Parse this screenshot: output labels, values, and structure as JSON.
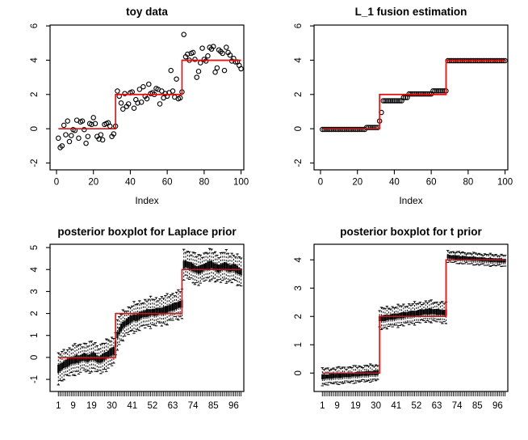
{
  "page": {
    "background": "#ffffff",
    "foreground": "#000000",
    "accent_color": "#ff0000"
  },
  "chart_data": [
    {
      "type": "scatter",
      "title": "toy data",
      "xlabel": "Index",
      "ylabel": "",
      "xlim": [
        -3.5,
        101.5
      ],
      "ylim": [
        -2.4,
        6.05
      ],
      "xticks": [
        0,
        20,
        40,
        60,
        80,
        100
      ],
      "yticks": [
        -2,
        0,
        2,
        4,
        6
      ],
      "grid": false,
      "point_style": "open-circle",
      "values": [
        -0.55,
        -1.1,
        -1.0,
        0.2,
        -0.35,
        0.45,
        -0.75,
        -0.4,
        -0.05,
        -0.1,
        0.5,
        -0.55,
        0.4,
        0.45,
        -0.05,
        -0.85,
        -0.45,
        0.3,
        0.25,
        0.65,
        0.3,
        -0.45,
        -0.6,
        -0.35,
        -0.65,
        0.25,
        0.3,
        0.35,
        0.15,
        -0.45,
        -0.3,
        0.15,
        2.2,
        1.9,
        1.5,
        1.15,
        2.05,
        1.3,
        1.45,
        2.1,
        2.15,
        1.2,
        1.7,
        1.5,
        2.3,
        1.55,
        2.45,
        1.9,
        1.75,
        2.6,
        2.05,
        2.1,
        2.0,
        2.35,
        2.3,
        1.45,
        2.2,
        1.8,
        2.05,
        1.9,
        2.1,
        3.4,
        2.2,
        1.85,
        2.9,
        1.75,
        1.8,
        2.15,
        5.5,
        4.2,
        4.35,
        4.0,
        4.4,
        4.45,
        4.05,
        3.0,
        3.35,
        3.85,
        4.7,
        4.05,
        3.95,
        4.25,
        4.75,
        4.65,
        4.8,
        3.3,
        3.55,
        4.6,
        4.5,
        4.4,
        3.4,
        4.75,
        4.45,
        4.3,
        3.95,
        4.1,
        3.9,
        3.9,
        3.7,
        3.5
      ],
      "truth_line": {
        "color": "#ff0000",
        "points": [
          [
            1,
            0
          ],
          [
            32,
            0
          ],
          [
            32,
            2
          ],
          [
            68,
            2
          ],
          [
            68,
            4
          ],
          [
            100,
            4
          ]
        ]
      }
    },
    {
      "type": "scatter",
      "title": "L_1 fusion estimation",
      "xlabel": "Index",
      "ylabel": "",
      "xlim": [
        -3.5,
        101.5
      ],
      "ylim": [
        -2.4,
        6.05
      ],
      "xticks": [
        0,
        20,
        40,
        60,
        80,
        100
      ],
      "yticks": [
        -2,
        0,
        2,
        4,
        6
      ],
      "grid": false,
      "point_style": "open-circle",
      "values": [
        -0.04,
        -0.04,
        -0.04,
        -0.04,
        -0.04,
        -0.04,
        -0.04,
        -0.04,
        -0.04,
        -0.04,
        -0.04,
        -0.04,
        -0.04,
        -0.04,
        -0.04,
        -0.04,
        -0.04,
        -0.04,
        -0.04,
        -0.04,
        -0.04,
        -0.04,
        -0.04,
        -0.04,
        0.07,
        0.07,
        0.07,
        0.07,
        0.07,
        0.07,
        0.07,
        0.45,
        0.95,
        1.63,
        1.63,
        1.63,
        1.63,
        1.63,
        1.63,
        1.63,
        1.63,
        1.63,
        1.63,
        1.63,
        1.82,
        1.82,
        1.82,
        2.03,
        2.03,
        2.03,
        2.03,
        2.03,
        2.03,
        2.03,
        2.03,
        2.03,
        2.03,
        2.03,
        2.03,
        2.03,
        2.21,
        2.21,
        2.21,
        2.21,
        2.21,
        2.21,
        2.21,
        2.21,
        3.97,
        3.97,
        3.97,
        3.97,
        3.97,
        3.97,
        3.97,
        3.97,
        3.97,
        3.97,
        3.97,
        3.97,
        3.97,
        3.97,
        3.97,
        3.97,
        3.97,
        3.97,
        3.97,
        3.97,
        3.97,
        3.97,
        3.97,
        3.97,
        3.97,
        3.97,
        3.97,
        3.97,
        3.97,
        3.97,
        3.97,
        3.97
      ],
      "truth_line": {
        "color": "#ff0000",
        "points": [
          [
            1,
            0
          ],
          [
            32,
            0
          ],
          [
            32,
            2
          ],
          [
            68,
            2
          ],
          [
            68,
            4
          ],
          [
            100,
            4
          ]
        ]
      }
    },
    {
      "type": "boxplot",
      "title": "posterior boxplot for Laplace prior",
      "xlabel": "",
      "ylabel": "",
      "xlim": [
        -3.5,
        101.5
      ],
      "ylim": [
        -1.55,
        5.15
      ],
      "xtick_labels": [
        1,
        9,
        19,
        30,
        41,
        52,
        63,
        74,
        85,
        96
      ],
      "yticks": [
        -1,
        0,
        1,
        2,
        3,
        4,
        5
      ],
      "grid": false,
      "medians": [
        -0.52,
        -0.45,
        -0.4,
        -0.33,
        -0.28,
        -0.24,
        -0.2,
        -0.16,
        -0.13,
        -0.1,
        -0.06,
        -0.09,
        -0.04,
        0.0,
        0.03,
        -0.01,
        -0.05,
        0.0,
        0.04,
        0.06,
        0.02,
        -0.06,
        -0.1,
        -0.07,
        -0.01,
        0.05,
        0.1,
        0.16,
        0.22,
        0.27,
        0.3,
        0.62,
        1.02,
        1.22,
        1.36,
        1.46,
        1.54,
        1.61,
        1.67,
        1.73,
        1.78,
        1.82,
        1.8,
        1.85,
        1.9,
        1.94,
        1.97,
        1.99,
        2.02,
        2.03,
        2.05,
        2.07,
        2.05,
        2.08,
        2.1,
        2.12,
        2.1,
        2.13,
        2.16,
        2.19,
        2.23,
        2.27,
        2.3,
        2.33,
        2.36,
        2.39,
        2.42,
        2.44,
        4.22,
        4.26,
        4.22,
        4.18,
        4.14,
        4.09,
        4.04,
        4.0,
        3.98,
        4.02,
        4.06,
        4.11,
        4.15,
        4.18,
        4.21,
        4.23,
        4.18,
        4.12,
        4.07,
        4.04,
        4.09,
        4.14,
        4.17,
        4.14,
        4.09,
        4.05,
        4.07,
        4.1,
        4.04,
        3.99,
        3.94,
        3.89
      ],
      "spreads": [
        {
          "from": 1,
          "to": 31,
          "whisker": 0.62,
          "box": 0.17
        },
        {
          "from": 32,
          "to": 68,
          "whisker": 0.6,
          "box": 0.16
        },
        {
          "from": 69,
          "to": 100,
          "whisker": 0.63,
          "box": 0.17
        }
      ],
      "truth_line": {
        "color": "#ff0000",
        "points": [
          [
            1,
            0
          ],
          [
            32,
            0
          ],
          [
            32,
            2
          ],
          [
            68,
            2
          ],
          [
            68,
            4
          ],
          [
            100,
            4
          ]
        ]
      }
    },
    {
      "type": "boxplot",
      "title": "posterior boxplot for t prior",
      "xlabel": "",
      "ylabel": "",
      "xlim": [
        -3.5,
        101.5
      ],
      "ylim": [
        -0.65,
        4.55
      ],
      "xtick_labels": [
        1,
        9,
        19,
        30,
        41,
        52,
        63,
        74,
        85,
        96
      ],
      "yticks": [
        0,
        1,
        2,
        3,
        4
      ],
      "grid": false,
      "medians": [
        -0.13,
        -0.13,
        -0.12,
        -0.12,
        -0.11,
        -0.11,
        -0.1,
        -0.1,
        -0.09,
        -0.09,
        -0.08,
        -0.08,
        -0.07,
        -0.07,
        -0.06,
        -0.06,
        -0.05,
        -0.05,
        -0.04,
        -0.04,
        -0.03,
        -0.03,
        -0.02,
        -0.02,
        -0.01,
        -0.01,
        0.0,
        0.0,
        0.01,
        0.01,
        0.02,
        1.92,
        1.93,
        1.94,
        1.95,
        1.96,
        1.97,
        1.98,
        1.99,
        2.0,
        2.01,
        2.02,
        2.03,
        2.04,
        2.05,
        2.06,
        2.07,
        2.08,
        2.09,
        2.1,
        2.11,
        2.12,
        2.13,
        2.14,
        2.15,
        2.16,
        2.17,
        2.17,
        2.18,
        2.18,
        2.17,
        2.17,
        2.16,
        2.16,
        2.15,
        2.14,
        2.14,
        2.13,
        4.12,
        4.11,
        4.1,
        4.1,
        4.09,
        4.08,
        4.08,
        4.07,
        4.07,
        4.06,
        4.06,
        4.05,
        4.05,
        4.04,
        4.04,
        4.03,
        4.03,
        4.02,
        4.02,
        4.01,
        4.01,
        4.0,
        4.0,
        4.0,
        3.99,
        3.99,
        3.99,
        3.98,
        3.98,
        3.98,
        3.97,
        3.97
      ],
      "spreads": [
        {
          "from": 1,
          "to": 31,
          "whisker": 0.27,
          "box": 0.08
        },
        {
          "from": 32,
          "to": 68,
          "whisker": 0.34,
          "box": 0.1
        },
        {
          "from": 69,
          "to": 100,
          "whisker": 0.19,
          "box": 0.07
        }
      ],
      "truth_line": {
        "color": "#ff0000",
        "points": [
          [
            1,
            0
          ],
          [
            32,
            0
          ],
          [
            32,
            2
          ],
          [
            68,
            2
          ],
          [
            68,
            4
          ],
          [
            100,
            4
          ]
        ]
      }
    }
  ]
}
